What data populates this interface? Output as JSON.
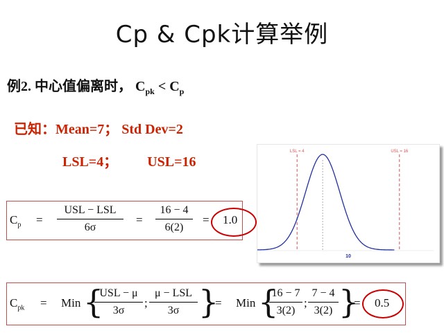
{
  "title": "Cp & Cpk计算举例",
  "example": {
    "label": "例2. 中心值偏离时，",
    "cpk": "C",
    "cpk_sub": "pk",
    "lt": "<",
    "cp": "C",
    "cp_sub": "p"
  },
  "given": {
    "line1": "已知：Mean=7； Std  Dev=2",
    "lsl": "LSL=4；",
    "usl": "USL=16"
  },
  "cp_formula": {
    "lhs": "C",
    "lhs_sub": "p",
    "eq": "=",
    "frac1_num": "USL − LSL",
    "frac1_den": "6σ",
    "frac2_num": "16 − 4",
    "frac2_den": "6(2)",
    "result": "1.0"
  },
  "cpk_formula": {
    "lhs": "C",
    "lhs_sub": "pk",
    "eq": "=",
    "min": "Min",
    "a_num": "USL − μ",
    "a_den": "3σ",
    "sep": ";",
    "b_num": "μ − LSL",
    "b_den": "3σ",
    "c_num": "16 − 7",
    "c_den": "3(2)",
    "d_num": "7 − 4",
    "d_den": "3(2)",
    "result": "0.5"
  },
  "chart_data": {
    "type": "line",
    "mean": 7,
    "std_dev": 2,
    "lsl": 4,
    "usl": 16,
    "xlim": [
      0,
      20
    ],
    "lsl_label": "LSL = 4",
    "usl_label": "USL = 16",
    "center_label": "10",
    "curve_color": "#1f2f9f",
    "limit_color": "#e05050"
  },
  "colors": {
    "accent": "#cc2200",
    "circle": "#cc0000",
    "box_border": "#c0504d"
  }
}
